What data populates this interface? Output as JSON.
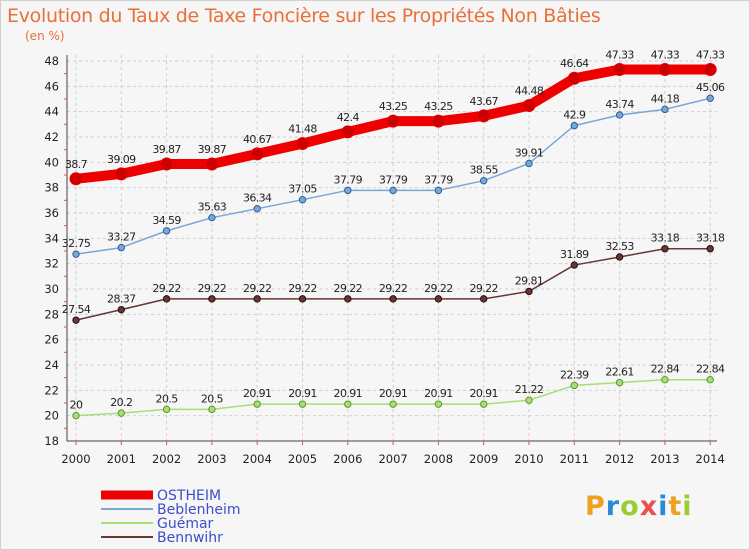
{
  "title": "Evolution du Taux de Taxe Foncière sur les Propriétés Non Bâties",
  "subtitle": "(en %)",
  "logo": {
    "text": "Proxiti",
    "colors": [
      "#f0a020",
      "#2a8ad8",
      "#9acd32",
      "#e85050",
      "#2a8ad8",
      "#f0a020",
      "#9acd32"
    ]
  },
  "chart_data": {
    "type": "line",
    "x": [
      "2000",
      "2001",
      "2002",
      "2003",
      "2004",
      "2005",
      "2006",
      "2007",
      "2008",
      "2009",
      "2010",
      "2011",
      "2012",
      "2013",
      "2014"
    ],
    "ylim": [
      18,
      48
    ],
    "yticks": [
      "18",
      "20",
      "22",
      "24",
      "26",
      "28",
      "30",
      "32",
      "34",
      "36",
      "38",
      "40",
      "42",
      "44",
      "46",
      "48"
    ],
    "grid": true,
    "legend_position": "bottom-left",
    "series": [
      {
        "name": "OSTHEIM",
        "color": "#ee0000",
        "values": [
          38.7,
          39.09,
          39.87,
          39.87,
          40.67,
          41.48,
          42.4,
          43.25,
          43.25,
          43.67,
          44.48,
          46.64,
          47.33,
          47.33,
          47.33
        ],
        "labels": [
          "38.7",
          "39.09",
          "39.87",
          "39.87",
          "40.67",
          "41.48",
          "42.4",
          "43.25",
          "43.25",
          "43.67",
          "44.48",
          "46.64",
          "47.33",
          "47.33",
          "47.33"
        ]
      },
      {
        "name": "Beblenheim",
        "color": "#7aa7d6",
        "values": [
          32.75,
          33.27,
          34.59,
          35.63,
          36.34,
          37.05,
          37.79,
          37.79,
          37.79,
          38.55,
          39.91,
          42.9,
          43.74,
          44.18,
          45.06
        ],
        "labels": [
          "32.75",
          "33.27",
          "34.59",
          "35.63",
          "36.34",
          "37.05",
          "37.79",
          "37.79",
          "37.79",
          "38.55",
          "39.91",
          "42.9",
          "43.74",
          "44.18",
          "45.06"
        ]
      },
      {
        "name": "Guémar",
        "color": "#a8dd7a",
        "values": [
          20,
          20.2,
          20.5,
          20.5,
          20.91,
          20.91,
          20.91,
          20.91,
          20.91,
          20.91,
          21.22,
          22.39,
          22.61,
          22.84,
          22.84
        ],
        "labels": [
          "20",
          "20.2",
          "20.5",
          "20.5",
          "20.91",
          "20.91",
          "20.91",
          "20.91",
          "20.91",
          "20.91",
          "21.22",
          "22.39",
          "22.61",
          "22.84",
          "22.84"
        ]
      },
      {
        "name": "Bennwihr",
        "color": "#6a3535",
        "values": [
          27.54,
          28.37,
          29.22,
          29.22,
          29.22,
          29.22,
          29.22,
          29.22,
          29.22,
          29.22,
          29.81,
          31.89,
          32.53,
          33.18,
          33.18
        ],
        "labels": [
          "27.54",
          "28.37",
          "29.22",
          "29.22",
          "29.22",
          "29.22",
          "29.22",
          "29.22",
          "29.22",
          "29.22",
          "29.81",
          "31.89",
          "32.53",
          "33.18",
          "33.18"
        ]
      }
    ]
  }
}
